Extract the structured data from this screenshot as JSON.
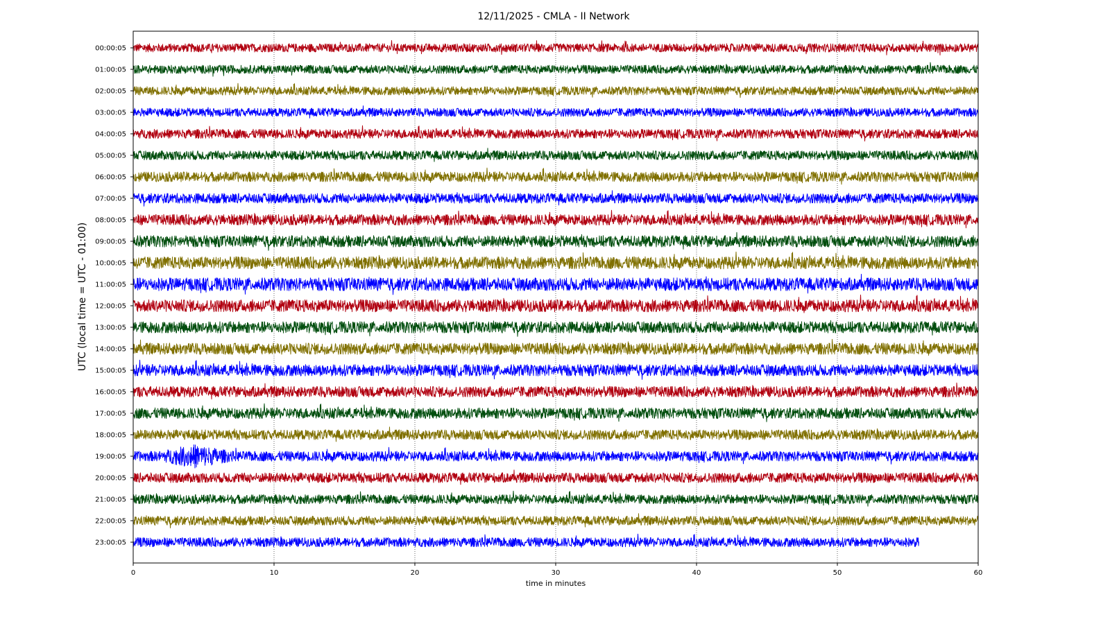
{
  "chart_data": {
    "type": "line",
    "title": "12/11/2025 - CMLA - II Network",
    "xlabel": "time in minutes",
    "ylabel": "UTC (local time = UTC - 01:00)",
    "xlim": [
      0,
      60
    ],
    "x_ticks": [
      0,
      10,
      20,
      30,
      40,
      50,
      60
    ],
    "grid": "vertical dotted at x ticks",
    "colors": [
      "#b10010",
      "#004d0d",
      "#807000",
      "#0000ff"
    ],
    "series": [
      {
        "name": "00:00:05",
        "start_min": 0,
        "end_min": 60,
        "amplitude": 0.55,
        "color": "#b10010"
      },
      {
        "name": "01:00:05",
        "start_min": 0,
        "end_min": 60,
        "amplitude": 0.55,
        "color": "#004d0d"
      },
      {
        "name": "02:00:05",
        "start_min": 0,
        "end_min": 60,
        "amplitude": 0.55,
        "color": "#807000"
      },
      {
        "name": "03:00:05",
        "start_min": 0,
        "end_min": 60,
        "amplitude": 0.55,
        "color": "#0000ff"
      },
      {
        "name": "04:00:05",
        "start_min": 0,
        "end_min": 60,
        "amplitude": 0.6,
        "color": "#b10010"
      },
      {
        "name": "05:00:05",
        "start_min": 0,
        "end_min": 60,
        "amplitude": 0.6,
        "color": "#004d0d"
      },
      {
        "name": "06:00:05",
        "start_min": 0,
        "end_min": 60,
        "amplitude": 0.65,
        "color": "#807000"
      },
      {
        "name": "07:00:05",
        "start_min": 0,
        "end_min": 60,
        "amplitude": 0.65,
        "color": "#0000ff"
      },
      {
        "name": "08:00:05",
        "start_min": 0,
        "end_min": 60,
        "amplitude": 0.7,
        "color": "#b10010"
      },
      {
        "name": "09:00:05",
        "start_min": 0,
        "end_min": 60,
        "amplitude": 0.75,
        "color": "#004d0d"
      },
      {
        "name": "10:00:05",
        "start_min": 0,
        "end_min": 60,
        "amplitude": 0.8,
        "color": "#807000"
      },
      {
        "name": "11:00:05",
        "start_min": 0,
        "end_min": 60,
        "amplitude": 0.85,
        "color": "#0000ff"
      },
      {
        "name": "12:00:05",
        "start_min": 0,
        "end_min": 60,
        "amplitude": 0.8,
        "color": "#b10010"
      },
      {
        "name": "13:00:05",
        "start_min": 0,
        "end_min": 60,
        "amplitude": 0.75,
        "color": "#004d0d"
      },
      {
        "name": "14:00:05",
        "start_min": 0,
        "end_min": 60,
        "amplitude": 0.75,
        "color": "#807000"
      },
      {
        "name": "15:00:05",
        "start_min": 0,
        "end_min": 60,
        "amplitude": 0.75,
        "color": "#0000ff"
      },
      {
        "name": "16:00:05",
        "start_min": 0,
        "end_min": 60,
        "amplitude": 0.7,
        "color": "#b10010"
      },
      {
        "name": "17:00:05",
        "start_min": 0,
        "end_min": 60,
        "amplitude": 0.7,
        "color": "#004d0d"
      },
      {
        "name": "18:00:05",
        "start_min": 0,
        "end_min": 60,
        "amplitude": 0.65,
        "color": "#807000"
      },
      {
        "name": "19:00:05",
        "start_min": 0,
        "end_min": 60,
        "amplitude": 0.65,
        "color": "#0000ff",
        "event": {
          "start_min": 0,
          "peak_min": 4.4,
          "end_min": 9,
          "amplitude": 1.6
        }
      },
      {
        "name": "20:00:05",
        "start_min": 0,
        "end_min": 60,
        "amplitude": 0.65,
        "color": "#b10010"
      },
      {
        "name": "21:00:05",
        "start_min": 0,
        "end_min": 60,
        "amplitude": 0.6,
        "color": "#004d0d"
      },
      {
        "name": "22:00:05",
        "start_min": 0,
        "end_min": 60,
        "amplitude": 0.6,
        "color": "#807000"
      },
      {
        "name": "23:00:05",
        "start_min": 0,
        "end_min": 55.8,
        "amplitude": 0.6,
        "color": "#0000ff"
      }
    ]
  }
}
